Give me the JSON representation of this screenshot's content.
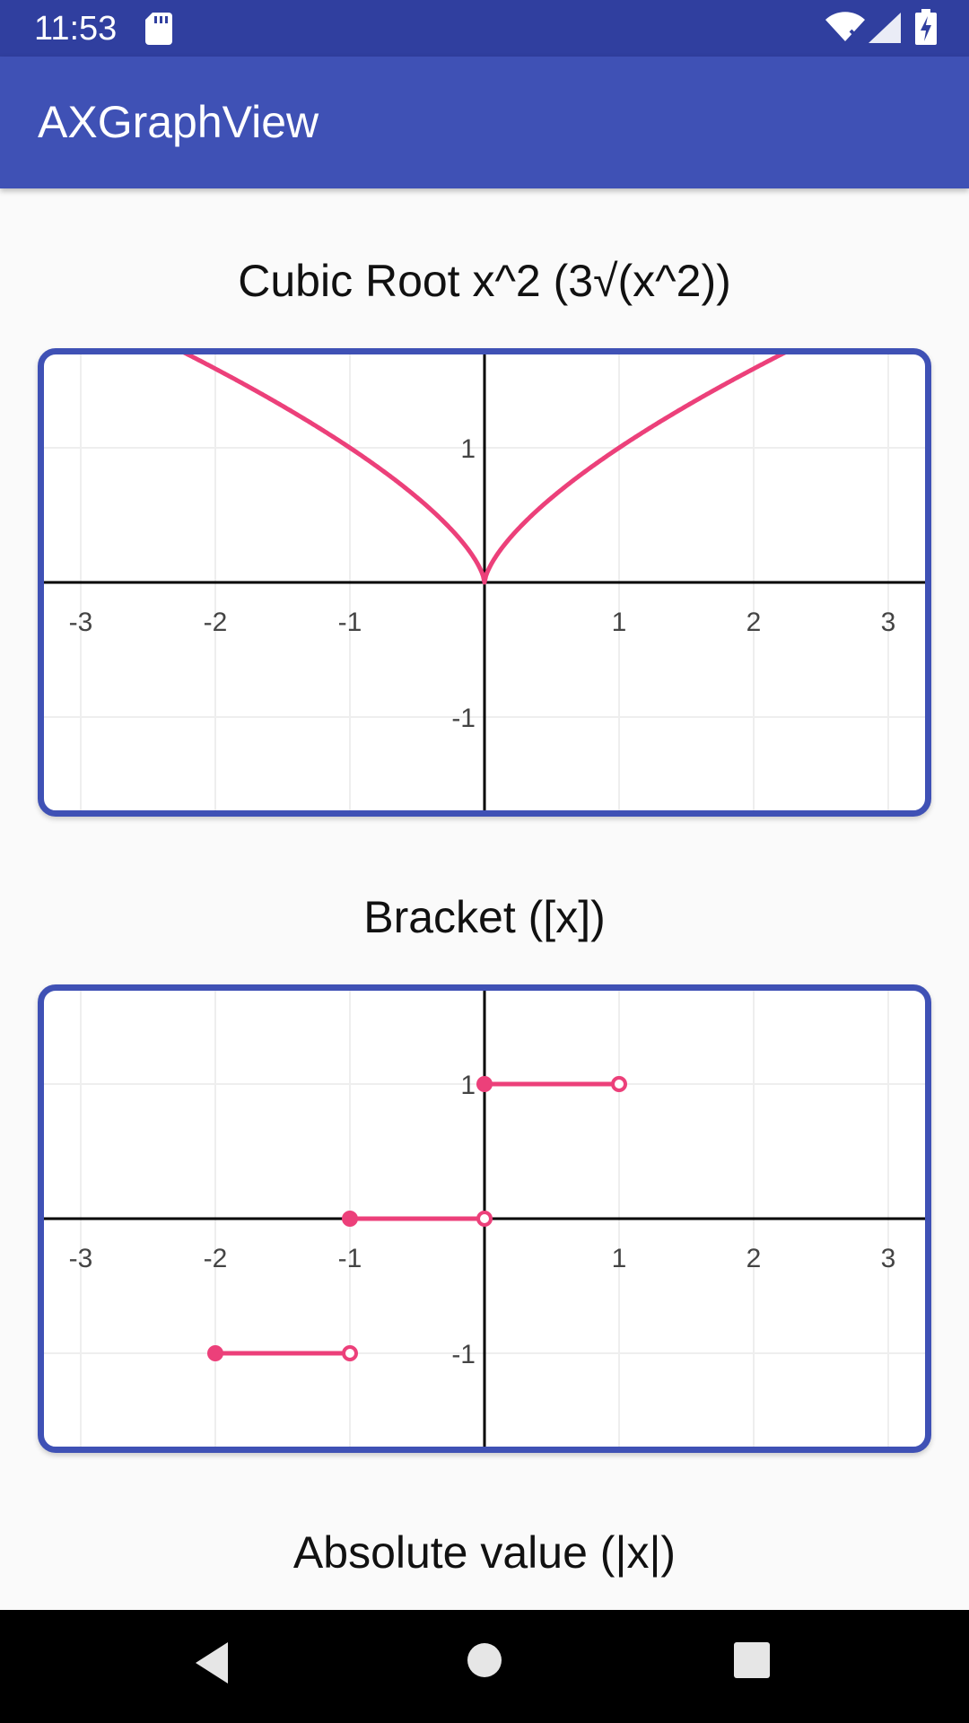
{
  "status_bar": {
    "time": "11:53",
    "icons": [
      "sd-card-icon",
      "wifi-icon",
      "signal-icon",
      "battery-charging-icon"
    ]
  },
  "app_bar": {
    "title": "AXGraphView"
  },
  "graphs": [
    {
      "title": "Cubic Root x^2 (3√(x^2))",
      "x_ticks": [
        "-3",
        "-2",
        "-1",
        "1",
        "2",
        "3"
      ],
      "y_ticks": [
        "1",
        "-1"
      ],
      "line_color": "#ec407a",
      "type": "curve"
    },
    {
      "title": "Bracket ([x])",
      "x_ticks": [
        "-3",
        "-2",
        "-1",
        "1",
        "2",
        "3"
      ],
      "y_ticks": [
        "1",
        "-1"
      ],
      "line_color": "#ec407a",
      "type": "steps",
      "segments": [
        {
          "x_start": -2,
          "x_end": -1,
          "y": -1
        },
        {
          "x_start": -1,
          "x_end": 0,
          "y": 0
        },
        {
          "x_start": 0,
          "x_end": 1,
          "y": 1
        }
      ]
    },
    {
      "title": "Absolute value (|x|)"
    }
  ],
  "colors": {
    "primary": "#3f51b5",
    "primary_dark": "#303f9f",
    "plot_line": "#ec407a",
    "grid": "#eeeeee",
    "axis": "#000000"
  },
  "nav_bar": {
    "icons": [
      "back-icon",
      "home-icon",
      "recents-icon"
    ]
  }
}
